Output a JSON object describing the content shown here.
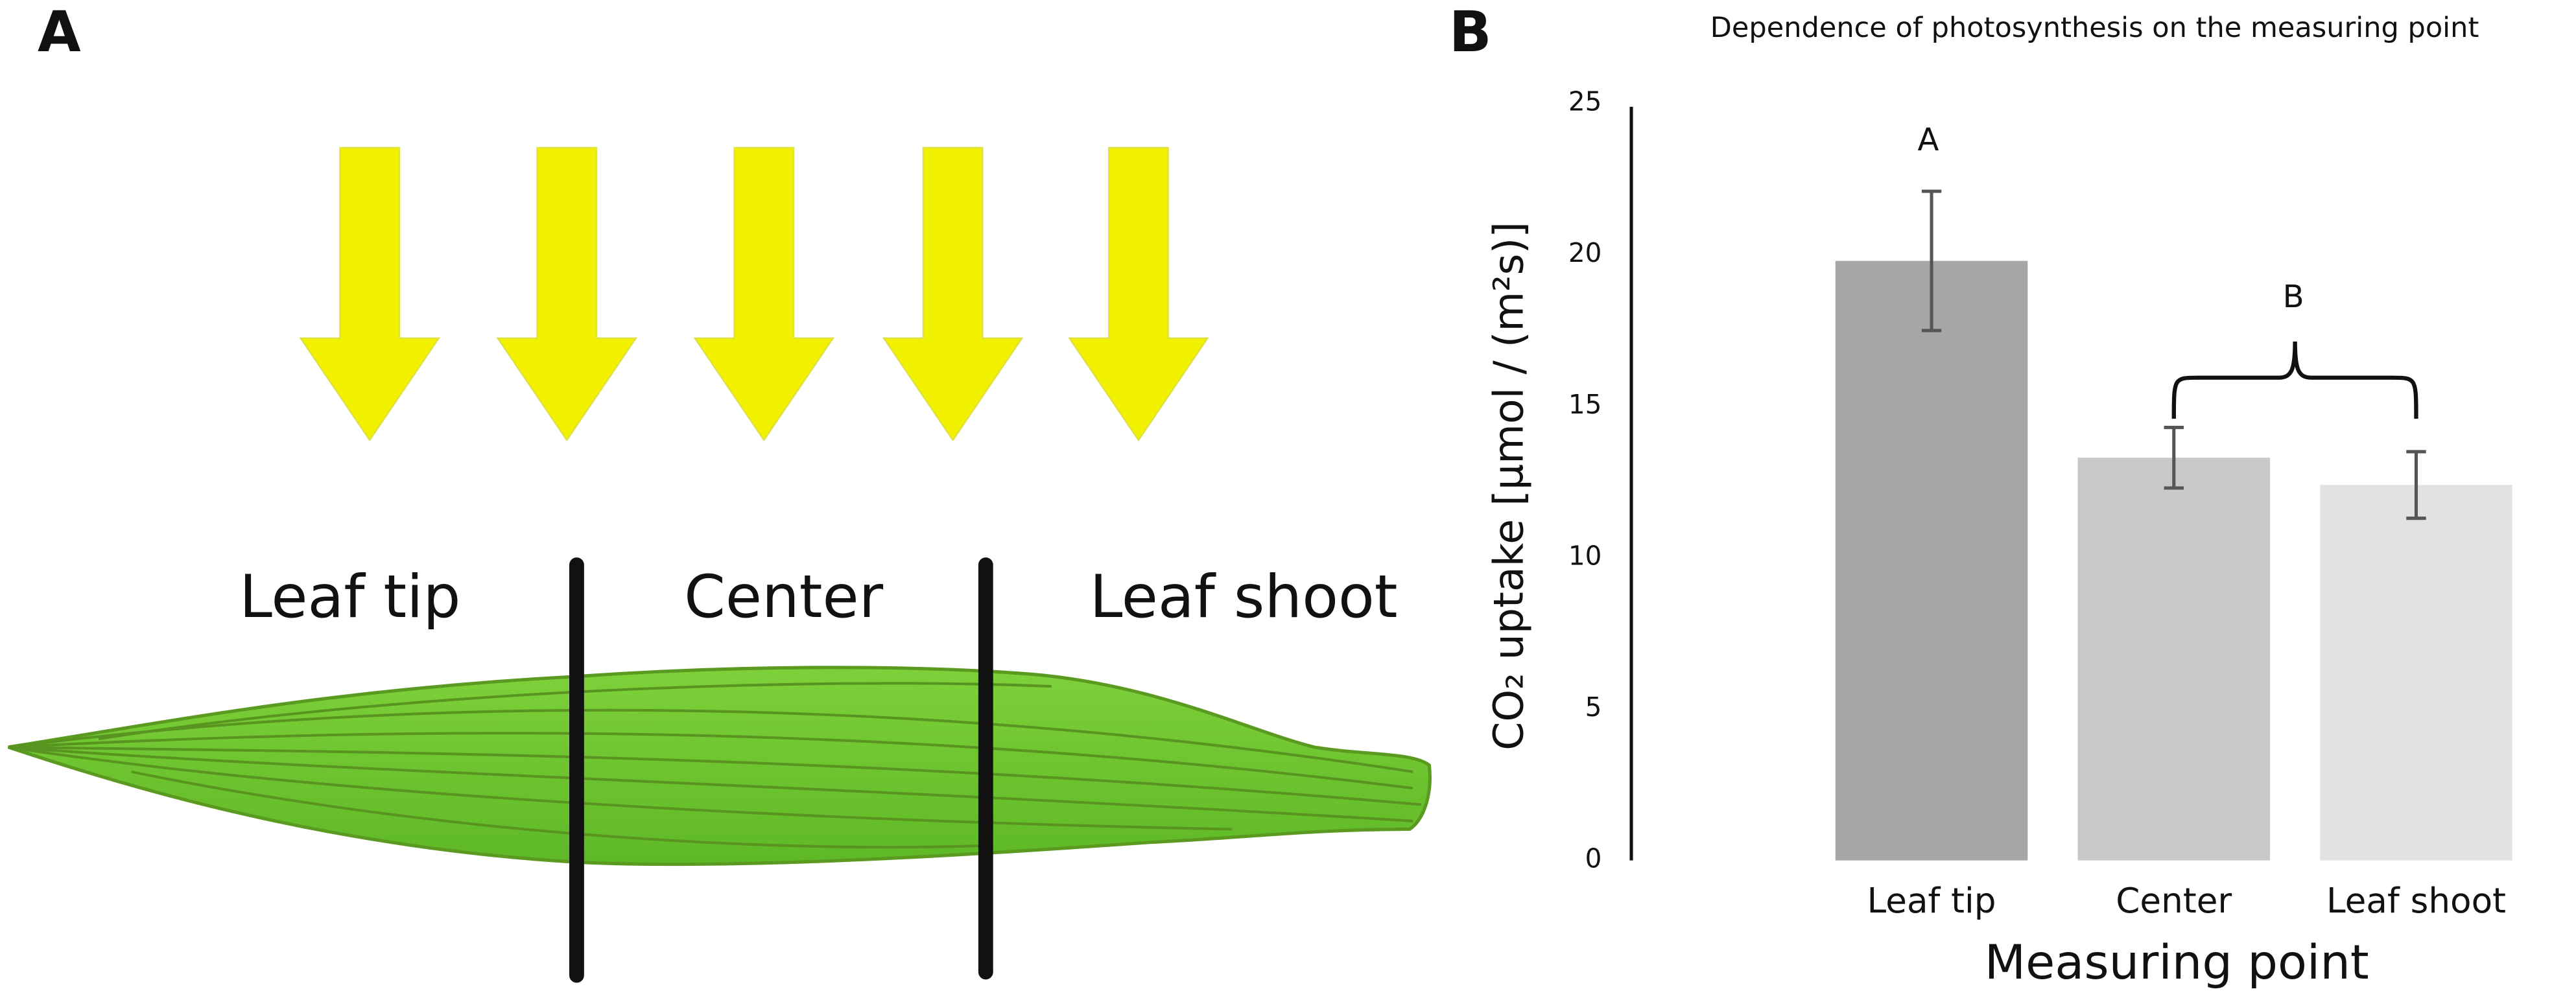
{
  "diagram": {
    "panel_label": "A",
    "regions": [
      "Leaf tip",
      "Center",
      "Leaf shoot"
    ]
  },
  "chart_data": {
    "type": "bar",
    "panel_label": "B",
    "title": "Dependence of photosynthesis on the measuring point",
    "x_label": "Measuring point",
    "y_label": "CO₂ uptake [µmol / (m²s)]",
    "categories": [
      "Leaf tip",
      "Center",
      "Leaf shoot"
    ],
    "values": [
      19.8,
      13.3,
      12.4
    ],
    "errors": [
      2.3,
      1.0,
      1.1
    ],
    "colors": [
      "#a6a6a6",
      "#c8c8c8",
      "#e2e2e2"
    ],
    "annotations": [
      "A",
      "B"
    ],
    "ylim": [
      0,
      25
    ],
    "yticks": [
      0,
      5,
      10,
      15,
      20,
      25
    ],
    "grid": false
  }
}
